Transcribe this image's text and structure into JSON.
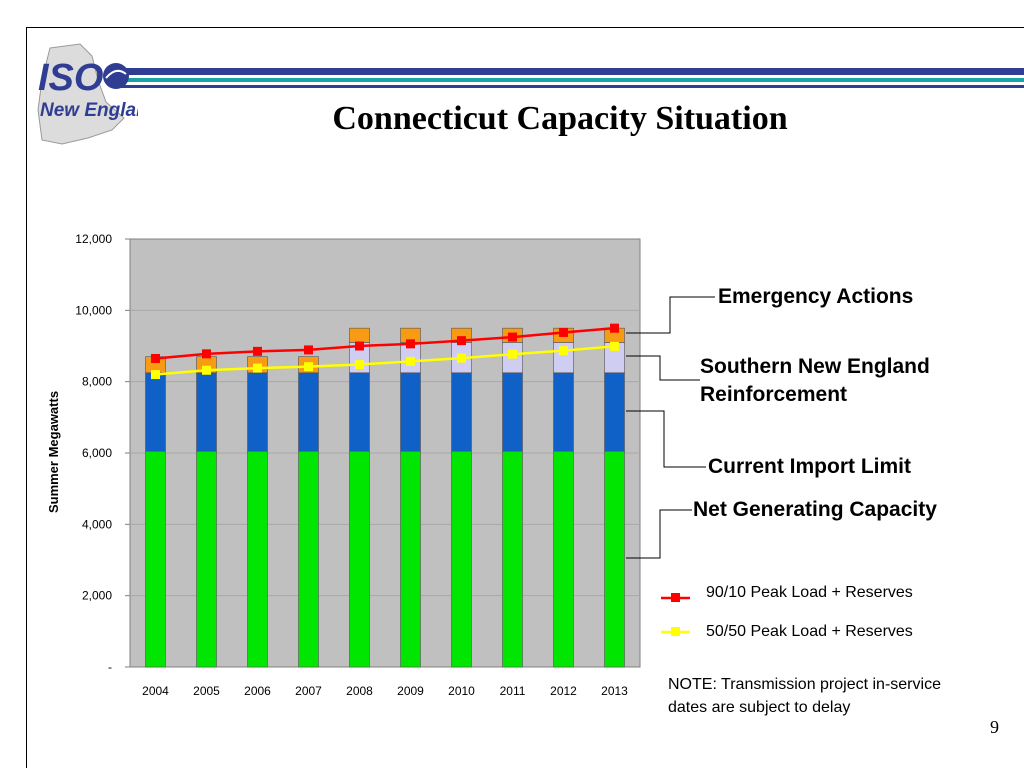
{
  "slide": {
    "title": "Connecticut Capacity Situation",
    "logo_text_top": "ISO",
    "logo_text_bottom": "New England",
    "page_number": "9",
    "note": "NOTE: Transmission project in-service dates are subject to delay"
  },
  "labels": {
    "emergency": "Emergency Actions",
    "southern_line1": "Southern New England",
    "southern_line2": "Reinforcement",
    "import": "Current Import Limit",
    "net_gen": "Net Generating Capacity"
  },
  "colors": {
    "net_gen": "#00e600",
    "import": "#0f61c8",
    "southern": "#cfcdf2",
    "emergency": "#f79b14",
    "plot_bg": "#c0c0c0",
    "line_9010": "#ff0000",
    "line_5050": "#ffff00",
    "stripe_blue": "#2f3d92",
    "stripe_teal": "#1aa3a3"
  },
  "chart_data": {
    "type": "bar",
    "stacked": true,
    "categories": [
      "2004",
      "2005",
      "2006",
      "2007",
      "2008",
      "2009",
      "2010",
      "2011",
      "2012",
      "2013"
    ],
    "ylabel": "Summer Megawatts",
    "ylim": [
      0,
      12000
    ],
    "yticks": [
      "-",
      "2,000",
      "4,000",
      "6,000",
      "8,000",
      "10,000",
      "12,000"
    ],
    "ytick_values": [
      0,
      2000,
      4000,
      6000,
      8000,
      10000,
      12000
    ],
    "series": [
      {
        "key": "net_gen",
        "values": [
          6050,
          6050,
          6050,
          6050,
          6050,
          6050,
          6050,
          6050,
          6050,
          6050
        ]
      },
      {
        "key": "import",
        "values": [
          2200,
          2200,
          2200,
          2200,
          2200,
          2200,
          2200,
          2200,
          2200,
          2200
        ]
      },
      {
        "key": "southern",
        "values": [
          0,
          0,
          0,
          0,
          850,
          850,
          850,
          850,
          850,
          850
        ]
      },
      {
        "key": "emergency",
        "values": [
          450,
          450,
          450,
          450,
          400,
          400,
          400,
          400,
          400,
          400
        ]
      }
    ],
    "lines": [
      {
        "name": "90/10 Peak Load + Reserves",
        "key": "line_9010",
        "values": [
          8650,
          8780,
          8850,
          8890,
          9000,
          9060,
          9150,
          9250,
          9380,
          9500
        ]
      },
      {
        "name": "50/50 Peak Load + Reserves",
        "key": "line_5050",
        "values": [
          8200,
          8320,
          8380,
          8420,
          8480,
          8570,
          8660,
          8770,
          8870,
          8990
        ]
      }
    ]
  }
}
